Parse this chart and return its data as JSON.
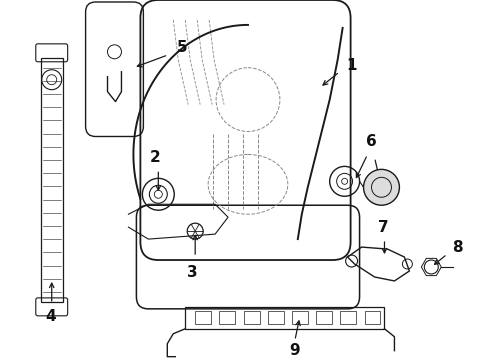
{
  "background_color": "#ffffff",
  "figure_width": 4.9,
  "figure_height": 3.6,
  "dpi": 100,
  "line_color": "#1a1a1a",
  "dash_color": "#888888"
}
